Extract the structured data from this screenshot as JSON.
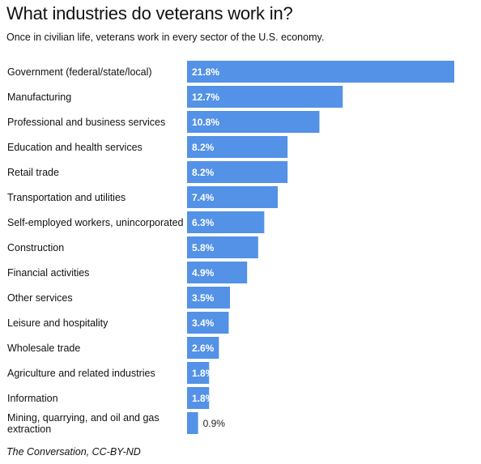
{
  "header": {
    "title": "What industries do veterans work in?",
    "subtitle": "Once in civilian life, veterans work in every sector of the U.S. economy."
  },
  "footer": {
    "source": "The Conversation, CC-BY-ND"
  },
  "colors": {
    "bar": "#5392e6",
    "label_inside": "#ffffff",
    "label_outside": "#222222"
  },
  "chart_data": {
    "type": "bar",
    "orientation": "horizontal",
    "title": "What industries do veterans work in?",
    "subtitle": "Once in civilian life, veterans work in every sector of the U.S. economy.",
    "xlabel": "",
    "ylabel": "",
    "grid": false,
    "legend": "none",
    "xlim": [
      0,
      21.8
    ],
    "categories": [
      "Government (federal/state/local)",
      "Manufacturing",
      "Professional and business services",
      "Education and health services",
      "Retail trade",
      "Transportation and utilities",
      "Self-employed workers, unincorporated",
      "Construction",
      "Financial activities",
      "Other services",
      "Leisure and hospitality",
      "Wholesale trade",
      "Agriculture and related industries",
      "Information",
      "Mining, quarrying, and oil and gas extraction"
    ],
    "values": [
      21.8,
      12.7,
      10.8,
      8.2,
      8.2,
      7.4,
      6.3,
      5.8,
      4.9,
      3.5,
      3.4,
      2.6,
      1.8,
      1.8,
      0.9
    ],
    "value_labels": [
      "21.8%",
      "12.7%",
      "10.8%",
      "8.2%",
      "8.2%",
      "7.4%",
      "6.3%",
      "5.8%",
      "4.9%",
      "3.5%",
      "3.4%",
      "2.6%",
      "1.8%",
      "1.8%",
      "0.9%"
    ]
  }
}
